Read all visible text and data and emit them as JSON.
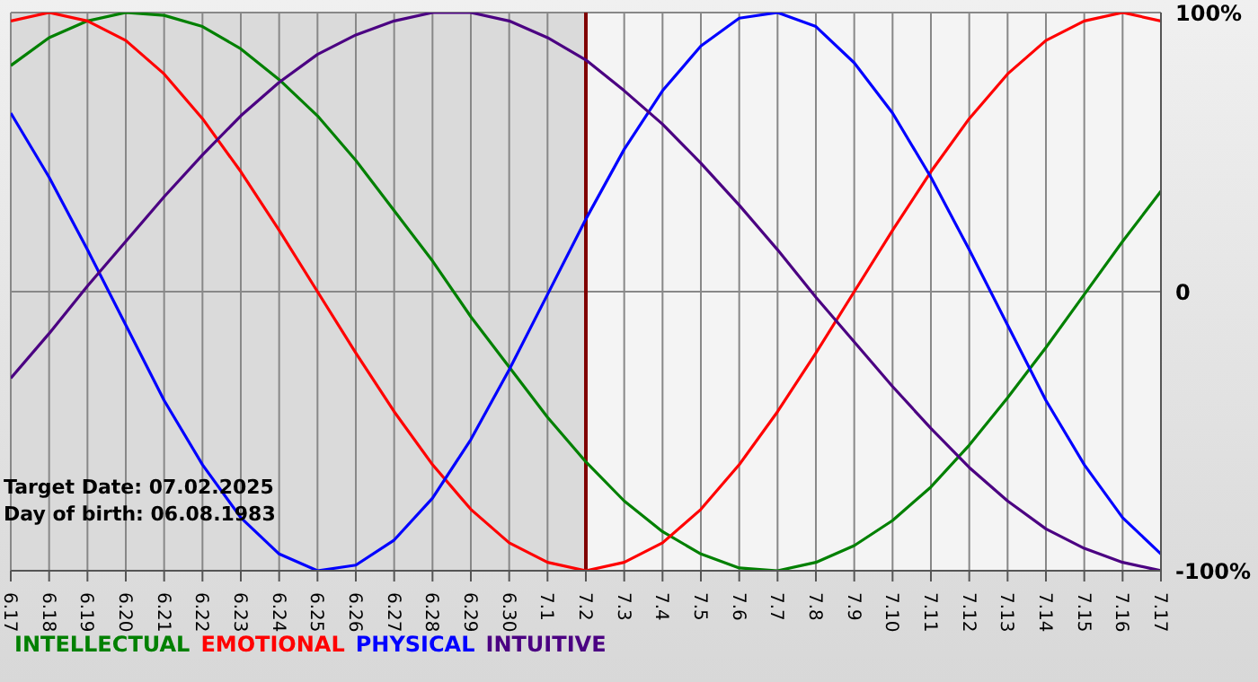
{
  "chart_data": {
    "type": "line",
    "categories": [
      "6.17",
      "6.18",
      "6.19",
      "6.20",
      "6.21",
      "6.22",
      "6.23",
      "6.24",
      "6.25",
      "6.26",
      "6.27",
      "6.28",
      "6.29",
      "6.30",
      "7.1",
      "7.2",
      "7.3",
      "7.4",
      "7.5",
      "7.6",
      "7.7",
      "7.8",
      "7.9",
      "7.10",
      "7.11",
      "7.12",
      "7.13",
      "7.14",
      "7.15",
      "7.16",
      "7.17"
    ],
    "series": [
      {
        "name": "INTELLECTUAL",
        "color": "#008000",
        "values": [
          81,
          91,
          97,
          100,
          99,
          95,
          87,
          76,
          63,
          47,
          29,
          11,
          -9,
          -27,
          -45,
          -61,
          -75,
          -86,
          -94,
          -99,
          -100,
          -97,
          -91,
          -82,
          -70,
          -55,
          -38,
          -20,
          -1,
          18,
          36
        ]
      },
      {
        "name": "EMOTIONAL",
        "color": "#ff0000",
        "values": [
          97,
          100,
          97,
          90,
          78,
          62,
          43,
          22,
          0,
          -22,
          -43,
          -62,
          -78,
          -90,
          -97,
          -100,
          -97,
          -90,
          -78,
          -62,
          -43,
          -22,
          0,
          22,
          43,
          62,
          78,
          90,
          97,
          100,
          97
        ]
      },
      {
        "name": "PHYSICAL",
        "color": "#0000ff",
        "values": [
          64,
          41,
          15,
          -12,
          -39,
          -62,
          -81,
          -94,
          -100,
          -98,
          -89,
          -74,
          -53,
          -28,
          -1,
          26,
          51,
          72,
          88,
          98,
          100,
          95,
          82,
          64,
          41,
          15,
          -12,
          -39,
          -62,
          -81,
          -94
        ]
      },
      {
        "name": "INTUITIVE",
        "color": "#4b0082",
        "values": [
          -31,
          -15,
          2,
          18,
          34,
          49,
          63,
          75,
          85,
          92,
          97,
          100,
          100,
          97,
          91,
          83,
          72,
          60,
          46,
          31,
          15,
          -2,
          -18,
          -34,
          -49,
          -63,
          -75,
          -85,
          -92,
          -97,
          -100
        ]
      }
    ],
    "ylim": [
      -100,
      100
    ],
    "yticks": [
      {
        "value": 100,
        "label": "100%"
      },
      0,
      {
        "value": -100,
        "label": "-100%"
      }
    ],
    "grid": true,
    "legend": "bottom left",
    "marker": "none",
    "line_style": "solid",
    "ref_lines": [
      {
        "axis": "x",
        "value": "7.2",
        "color": "#800000"
      }
    ],
    "bands": [
      {
        "axis": "x",
        "from": "6.17",
        "to": "7.2",
        "color": "#dadada"
      }
    ],
    "annotations": [
      "Target Date: 07.02.2025",
      "Day of birth: 06.08.1983"
    ]
  }
}
